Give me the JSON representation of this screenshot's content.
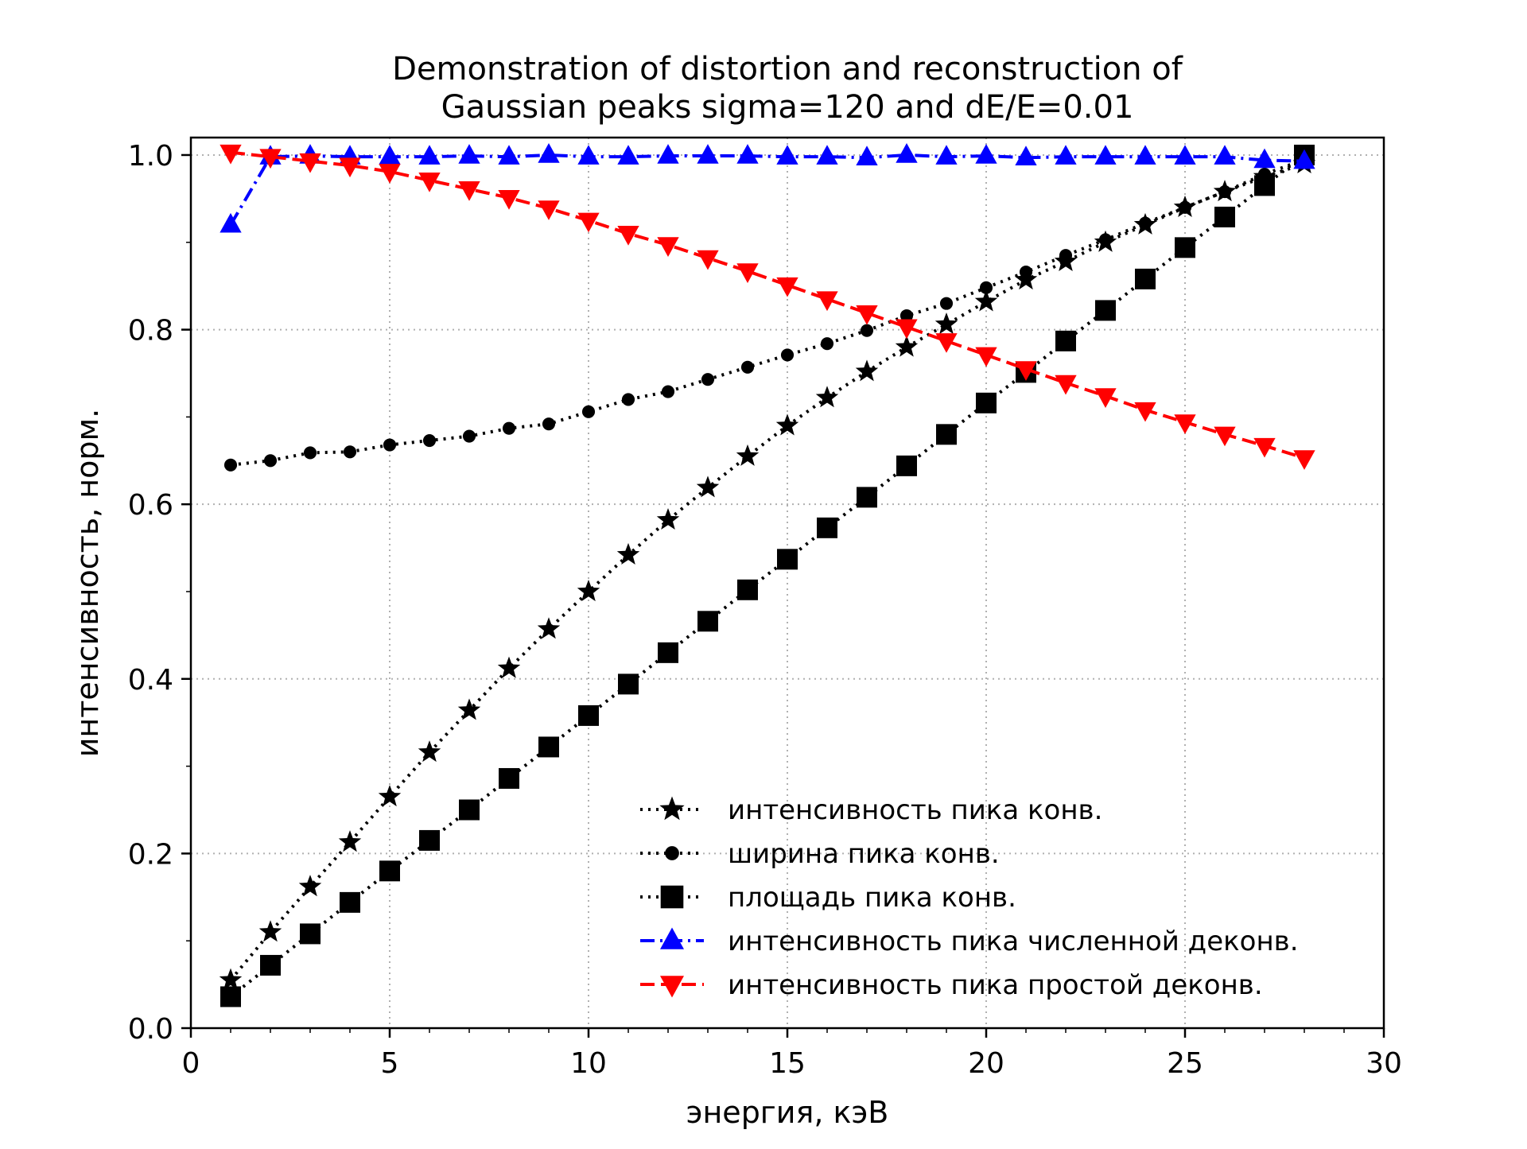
{
  "chart_data": {
    "type": "line",
    "title_lines": [
      "Demonstration of  distortion and reconstruction of",
      "Gaussian peaks sigma=120 and dE/E=0.01"
    ],
    "xlabel": "энергия, кэВ",
    "ylabel": "интенсивность, норм.",
    "xlim": [
      0,
      30
    ],
    "ylim": [
      0,
      1.02
    ],
    "xticks": [
      0,
      5,
      10,
      15,
      20,
      25,
      30
    ],
    "xtick_labels": [
      "0",
      "5",
      "10",
      "15",
      "20",
      "25",
      "30"
    ],
    "yticks": [
      0,
      0.2,
      0.4,
      0.6,
      0.8,
      1.0
    ],
    "ytick_labels": [
      "0.0",
      "0.2",
      "0.4",
      "0.6",
      "0.8",
      "1.0"
    ],
    "grid": true,
    "legend_position": "lower-right",
    "x": [
      1,
      2,
      3,
      4,
      5,
      6,
      7,
      8,
      9,
      10,
      11,
      12,
      13,
      14,
      15,
      16,
      17,
      18,
      19,
      20,
      21,
      22,
      23,
      24,
      25,
      26,
      27,
      28
    ],
    "series": [
      {
        "name": "интенсивность пика конв.",
        "color": "#000000",
        "line": "dotted",
        "marker": "star",
        "values": [
          0.055,
          0.11,
          0.162,
          0.213,
          0.265,
          0.316,
          0.364,
          0.412,
          0.457,
          0.5,
          0.542,
          0.582,
          0.619,
          0.655,
          0.69,
          0.722,
          0.752,
          0.78,
          0.806,
          0.832,
          0.857,
          0.878,
          0.9,
          0.92,
          0.94,
          0.958,
          0.975,
          0.99
        ]
      },
      {
        "name": "ширина пика конв.",
        "color": "#000000",
        "line": "dotted",
        "marker": "circle",
        "values": [
          0.645,
          0.65,
          0.659,
          0.66,
          0.668,
          0.673,
          0.678,
          0.687,
          0.692,
          0.706,
          0.72,
          0.729,
          0.743,
          0.757,
          0.771,
          0.784,
          0.799,
          0.816,
          0.83,
          0.848,
          0.866,
          0.885,
          0.903,
          0.922,
          0.94,
          0.958,
          0.978,
          0.995
        ]
      },
      {
        "name": "площадь пика конв.",
        "color": "#000000",
        "line": "dotted",
        "marker": "square",
        "values": [
          0.036,
          0.072,
          0.108,
          0.144,
          0.18,
          0.215,
          0.25,
          0.286,
          0.322,
          0.358,
          0.394,
          0.43,
          0.466,
          0.502,
          0.537,
          0.573,
          0.608,
          0.644,
          0.68,
          0.716,
          0.751,
          0.787,
          0.822,
          0.858,
          0.894,
          0.929,
          0.965,
          1.0
        ]
      },
      {
        "name": "интенсивность пика численной деконв.",
        "color": "#0000ff",
        "line": "dashdot",
        "marker": "triangle-up",
        "values": [
          0.92,
          0.998,
          0.999,
          0.998,
          0.998,
          0.998,
          0.999,
          0.998,
          1.0,
          0.998,
          0.998,
          0.999,
          0.999,
          0.999,
          0.998,
          0.998,
          0.997,
          1.0,
          0.998,
          0.999,
          0.997,
          0.998,
          0.998,
          0.998,
          0.998,
          0.998,
          0.994,
          0.993
        ]
      },
      {
        "name": "интенсивность пика простой деконв.",
        "color": "#ff0000",
        "line": "dashed",
        "marker": "triangle-down",
        "values": [
          1.003,
          0.998,
          0.993,
          0.988,
          0.981,
          0.971,
          0.961,
          0.951,
          0.939,
          0.925,
          0.91,
          0.897,
          0.882,
          0.867,
          0.851,
          0.835,
          0.819,
          0.803,
          0.787,
          0.771,
          0.755,
          0.739,
          0.724,
          0.708,
          0.694,
          0.68,
          0.667,
          0.653
        ]
      }
    ]
  }
}
